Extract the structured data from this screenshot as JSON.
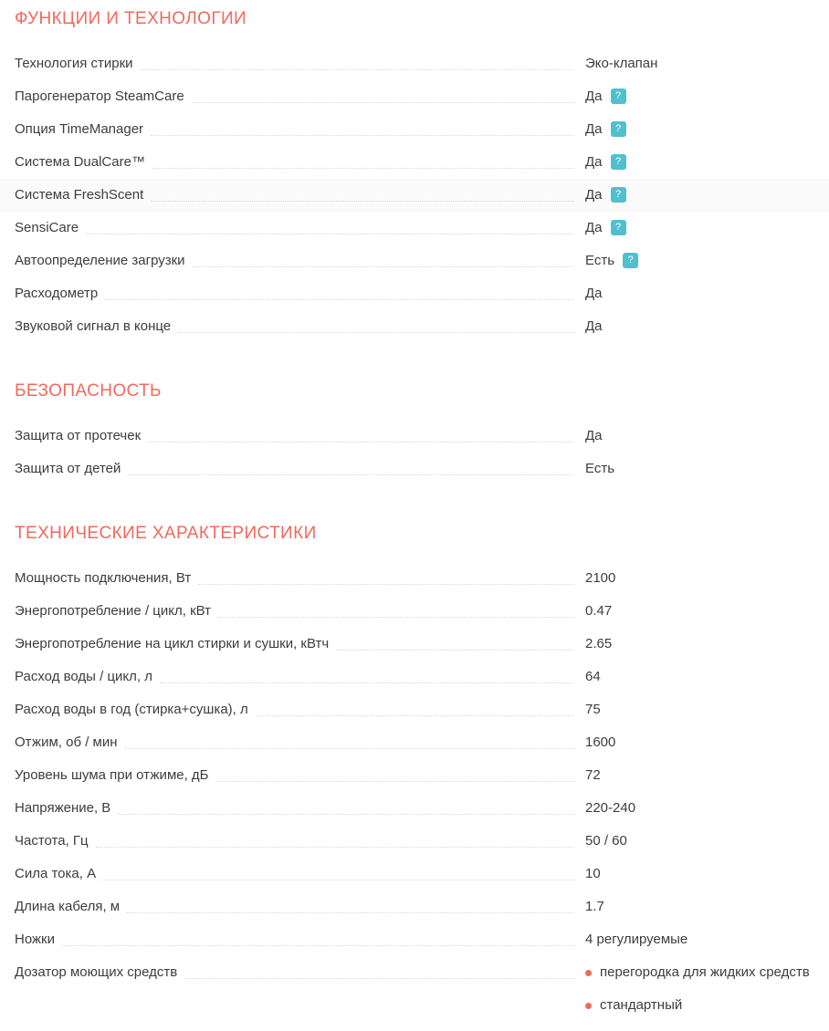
{
  "colors": {
    "accent": "#F0695D",
    "help_icon_bg": "#4FC0CD",
    "row_highlight": "#FAFAFA",
    "leader_dots": "#D8D8D8",
    "text": "#3D3D3D"
  },
  "help_icon": {
    "glyph": "?"
  },
  "sections": [
    {
      "title": "ФУНКЦИИ И ТЕХНОЛОГИИ",
      "rows": [
        {
          "label": "Технология стирки",
          "value": "Эко-клапан",
          "help": false,
          "highlighted": false
        },
        {
          "label": "Парогенератор SteamCare",
          "value": "Да",
          "help": true,
          "highlighted": false
        },
        {
          "label": "Опция TimeManager",
          "value": "Да",
          "help": true,
          "highlighted": false
        },
        {
          "label": "Система DualCare™",
          "value": "Да",
          "help": true,
          "highlighted": false
        },
        {
          "label": "Система FreshScent",
          "value": "Да",
          "help": true,
          "highlighted": true
        },
        {
          "label": "SensiCare",
          "value": "Да",
          "help": true,
          "highlighted": false
        },
        {
          "label": "Автоопределение загрузки",
          "value": "Есть",
          "help": true,
          "highlighted": false
        },
        {
          "label": "Расходометр",
          "value": "Да",
          "help": false,
          "highlighted": false
        },
        {
          "label": "Звуковой сигнал в конце",
          "value": "Да",
          "help": false,
          "highlighted": false
        }
      ]
    },
    {
      "title": "БЕЗОПАСНОСТЬ",
      "rows": [
        {
          "label": "Защита от протечек",
          "value": "Да",
          "help": false,
          "highlighted": false
        },
        {
          "label": "Защита от детей",
          "value": "Есть",
          "help": false,
          "highlighted": false
        }
      ]
    },
    {
      "title": "ТЕХНИЧЕСКИЕ ХАРАКТЕРИСТИКИ",
      "rows": [
        {
          "label": "Мощность подключения, Вт",
          "value": "2100",
          "help": false,
          "highlighted": false
        },
        {
          "label": "Энергопотребление / цикл, кВт",
          "value": "0.47",
          "help": false,
          "highlighted": false
        },
        {
          "label": "Энергопотребление на цикл стирки и сушки, кВтч",
          "value": "2.65",
          "help": false,
          "highlighted": false
        },
        {
          "label": "Расход воды / цикл, л",
          "value": "64",
          "help": false,
          "highlighted": false
        },
        {
          "label": "Расход воды в год (стирка+сушка), л",
          "value": "75",
          "help": false,
          "highlighted": false
        },
        {
          "label": "Отжим, об / мин",
          "value": "1600",
          "help": false,
          "highlighted": false
        },
        {
          "label": "Уровень шума при отжиме, дБ",
          "value": "72",
          "help": false,
          "highlighted": false
        },
        {
          "label": "Напряжение, В",
          "value": "220-240",
          "help": false,
          "highlighted": false
        },
        {
          "label": "Частота, Гц",
          "value": "50 / 60",
          "help": false,
          "highlighted": false
        },
        {
          "label": "Сила тока, А",
          "value": "10",
          "help": false,
          "highlighted": false
        },
        {
          "label": "Длина кабеля, м",
          "value": "1.7",
          "help": false,
          "highlighted": false
        },
        {
          "label": "Ножки",
          "value": "4 регулируемые",
          "help": false,
          "highlighted": false
        },
        {
          "label": "Дозатор моющих средств",
          "value_list": [
            "перегородка для жидких средств",
            "стандартный"
          ],
          "help": false,
          "highlighted": false
        }
      ]
    }
  ]
}
